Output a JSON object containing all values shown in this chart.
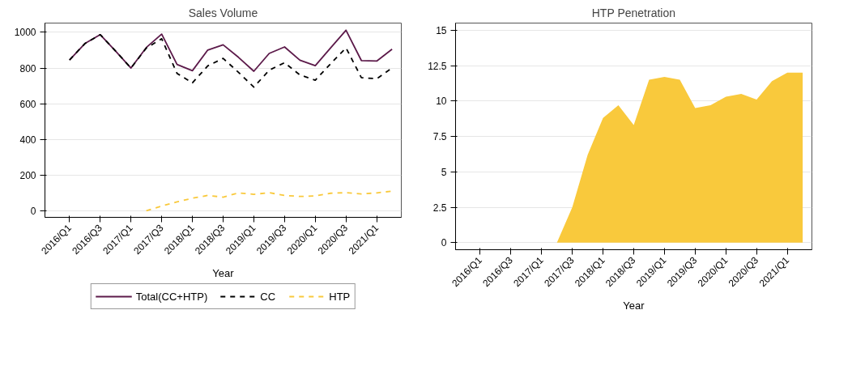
{
  "chart_data": [
    {
      "type": "line",
      "title": "Sales Volume",
      "xlabel": "Year",
      "categories": [
        "2016/Q1",
        null,
        "2016/Q3",
        null,
        "2017/Q1",
        null,
        "2017/Q3",
        null,
        "2018/Q1",
        null,
        "2018/Q3",
        null,
        "2019/Q1",
        null,
        "2019/Q3",
        null,
        "2020/Q1",
        null,
        "2020/Q3",
        null,
        "2021/Q1",
        null
      ],
      "series": [
        {
          "name": "Total(CC+HTP)",
          "color": "#5c1a4a",
          "line_style": "solid",
          "values": [
            845,
            937,
            987,
            895,
            800,
            915,
            990,
            820,
            785,
            901,
            930,
            860,
            782,
            882,
            918,
            844,
            813,
            913,
            1012,
            842,
            839,
            906
          ]
        },
        {
          "name": "CC",
          "color": "#000000",
          "line_style": "dashed",
          "values": [
            845,
            937,
            987,
            895,
            800,
            912,
            964,
            770,
            717,
            812,
            854,
            776,
            693,
            788,
            830,
            761,
            732,
            824,
            913,
            746,
            740,
            800
          ]
        },
        {
          "name": "HTP",
          "color": "#f9c93c",
          "line_style": "dashed",
          "values": [
            null,
            null,
            null,
            null,
            null,
            0,
            26,
            50,
            70,
            86,
            76,
            100,
            92,
            101,
            86,
            80,
            83,
            98,
            101,
            94,
            100,
            110
          ]
        }
      ],
      "ylim": [
        -37,
        1052
      ],
      "yticks": [
        0,
        200,
        400,
        600,
        800,
        1000
      ],
      "grid": "y",
      "legend": "bottom"
    },
    {
      "type": "area",
      "title": "HTP Penetration",
      "xlabel": "Year",
      "categories": [
        "2016/Q1",
        null,
        "2016/Q3",
        null,
        "2017/Q1",
        null,
        "2017/Q3",
        null,
        "2018/Q1",
        null,
        "2018/Q3",
        null,
        "2019/Q1",
        null,
        "2019/Q3",
        null,
        "2020/Q1",
        null,
        "2020/Q3",
        null,
        "2021/Q1",
        null
      ],
      "color": "#f9c93c",
      "values": [
        null,
        null,
        null,
        null,
        null,
        0,
        2.5,
        6.2,
        8.8,
        9.7,
        8.3,
        11.5,
        11.7,
        11.5,
        9.5,
        9.7,
        10.3,
        10.5,
        10.1,
        11.4,
        12.0,
        12.0
      ],
      "ylim": [
        -0.5,
        15.5
      ],
      "yticks": [
        0,
        2.5,
        5,
        7.5,
        10,
        12.5,
        15
      ],
      "grid": "y"
    }
  ]
}
